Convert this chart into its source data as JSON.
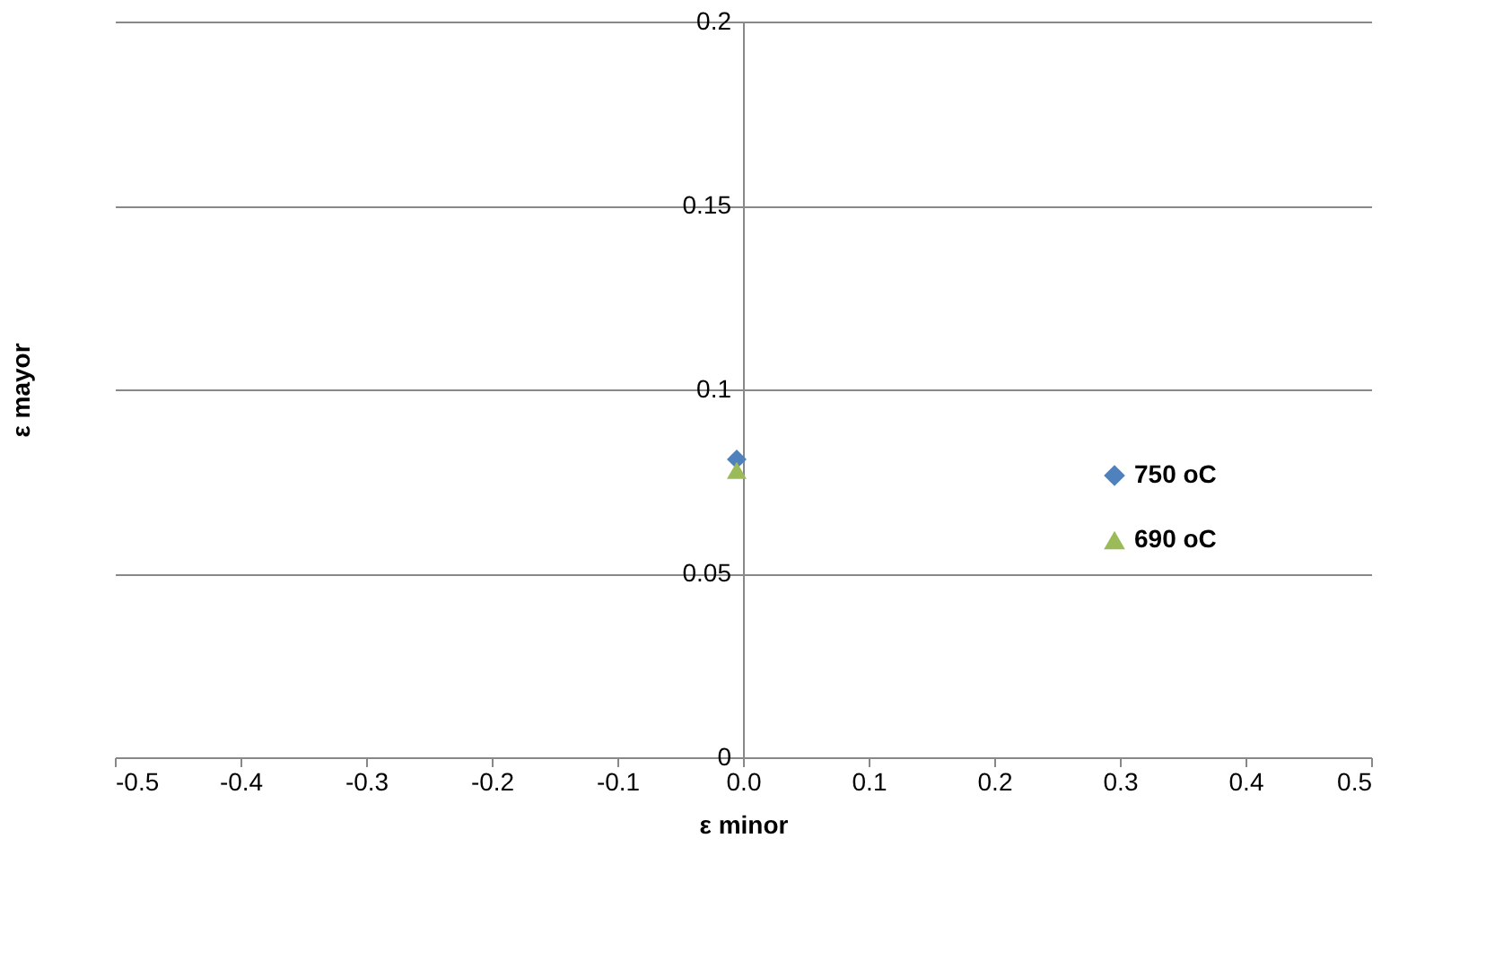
{
  "chart_data": {
    "type": "scatter",
    "xlabel": "ε minor",
    "ylabel": "ε mayor",
    "xlim": [
      -0.5,
      0.5
    ],
    "xticks": [
      -0.5,
      -0.4,
      -0.3,
      -0.2,
      -0.1,
      {
        "value": 0,
        "label": "0.0"
      },
      0.1,
      0.2,
      0.3,
      0.4,
      0.5
    ],
    "ylim": [
      0,
      0.2
    ],
    "yticks": [
      0,
      0.05,
      0.1,
      0.15,
      0.2
    ],
    "grid": "y",
    "legend": "right",
    "series": [
      {
        "name": "750 oC",
        "color": "#4f81bd",
        "marker": "diamond",
        "x": [
          -0.005
        ],
        "values": [
          0.081
        ]
      },
      {
        "name": "690 oC",
        "color": "#9bbb59",
        "marker": "triangle",
        "x": [
          -0.005
        ],
        "values": [
          0.078
        ]
      }
    ]
  }
}
